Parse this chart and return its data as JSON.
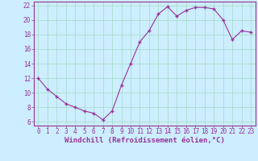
{
  "x": [
    0,
    1,
    2,
    3,
    4,
    5,
    6,
    7,
    8,
    9,
    10,
    11,
    12,
    13,
    14,
    15,
    16,
    17,
    18,
    19,
    20,
    21,
    22,
    23
  ],
  "y": [
    12,
    10.5,
    9.5,
    8.5,
    8,
    7.5,
    7.2,
    6.3,
    7.5,
    11,
    14,
    17,
    18.5,
    20.8,
    21.8,
    20.5,
    21.3,
    21.7,
    21.7,
    21.5,
    20,
    17.3,
    18.5,
    18.3
  ],
  "xlabel": "Windchill (Refroidissement éolien,°C)",
  "ylim": [
    5.5,
    22.5
  ],
  "xlim": [
    -0.5,
    23.5
  ],
  "yticks": [
    6,
    8,
    10,
    12,
    14,
    16,
    18,
    20,
    22
  ],
  "xticks": [
    0,
    1,
    2,
    3,
    4,
    5,
    6,
    7,
    8,
    9,
    10,
    11,
    12,
    13,
    14,
    15,
    16,
    17,
    18,
    19,
    20,
    21,
    22,
    23
  ],
  "line_color": "#993399",
  "marker_color": "#993399",
  "bg_color": "#cceeff",
  "grid_color": "#aaddcc",
  "axis_color": "#993399",
  "text_color": "#993399",
  "font_size": 5.5,
  "xlabel_fontsize": 6.5
}
